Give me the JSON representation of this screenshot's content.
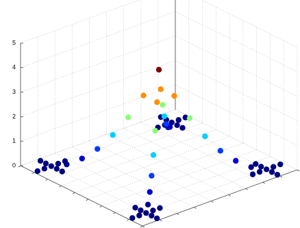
{
  "chart_data": {
    "type": "scatter3d",
    "x": [
      4.5,
      5,
      5.5,
      6,
      6.5,
      7,
      7.5,
      8,
      5,
      5.5,
      6,
      6.5,
      7,
      7.5,
      8,
      4,
      3.5,
      3,
      2.5,
      2,
      1.5,
      1,
      4,
      3.5,
      3,
      2.5,
      2,
      1.5,
      1,
      7.2,
      7.6,
      8.4,
      8.8,
      8,
      8,
      8,
      8,
      7.2,
      7.6,
      8.4,
      8.8,
      8,
      8,
      8,
      8,
      0.2,
      0.6,
      1.4,
      1.8,
      1,
      1,
      1,
      1,
      0.2,
      0.6,
      1.4,
      1.8,
      1,
      1,
      1,
      1
    ],
    "y": [
      4.5,
      4,
      3.5,
      3,
      2.5,
      2,
      1.5,
      1,
      5,
      5.5,
      6,
      6.5,
      7,
      7.5,
      8,
      5,
      5.5,
      6,
      6.5,
      7,
      7.5,
      8,
      4,
      3.5,
      3,
      2.5,
      2,
      1.5,
      1,
      1,
      1,
      1,
      1,
      0.2,
      0.6,
      1.4,
      1.8,
      8,
      8,
      8,
      8,
      7.2,
      7.6,
      8.4,
      8.8,
      8,
      8,
      8,
      8,
      7.2,
      7.6,
      8.4,
      8.8,
      1,
      1,
      1,
      1,
      0.2,
      0.6,
      1.4,
      1.8
    ],
    "z": [
      4,
      2.94,
      2.04,
      1.31,
      0.73,
      0.33,
      0.08,
      0,
      2.94,
      2.04,
      1.31,
      0.73,
      0.33,
      0.08,
      0,
      2.94,
      2.04,
      1.31,
      0.73,
      0.33,
      0.08,
      0,
      2.94,
      2.04,
      1.31,
      0.73,
      0.33,
      0.08,
      0,
      0,
      0,
      0,
      0,
      0,
      0,
      0,
      0,
      0,
      0,
      0,
      0,
      0,
      0,
      0,
      0,
      0,
      0,
      0,
      0,
      0,
      0,
      0,
      0,
      0,
      0,
      0,
      0,
      0,
      0,
      0,
      0
    ],
    "colormap": "jet",
    "clim": [
      0,
      4
    ],
    "xlim": [
      0,
      9
    ],
    "xticks": [
      0,
      1,
      2,
      3,
      4,
      5,
      6,
      7,
      8,
      9
    ],
    "ylim": [
      0,
      9
    ],
    "yticks": [
      0,
      1,
      2,
      3,
      4,
      5,
      6,
      7,
      8,
      9
    ],
    "zlim": [
      0,
      5
    ],
    "zticks": [
      0,
      1,
      2,
      3,
      4,
      5
    ],
    "grid": true
  }
}
